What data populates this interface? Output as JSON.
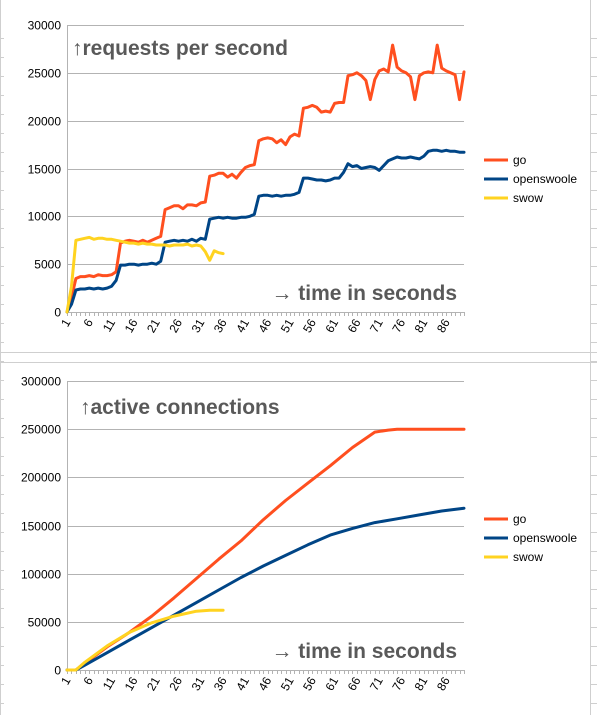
{
  "colors": {
    "go": "#ff4f1f",
    "openswoole": "#004586",
    "swow": "#ffd320",
    "gridline": "#b3b3b3",
    "axis": "#b3b3b3",
    "label_text": "#595959"
  },
  "chart_data": [
    {
      "type": "line",
      "title": "↑requests per second",
      "annotation": "→ time in seconds",
      "ylim": [
        0,
        30000
      ],
      "yticks": [
        0,
        5000,
        10000,
        15000,
        20000,
        25000,
        30000
      ],
      "xlim": [
        1,
        90
      ],
      "xticks": [
        "1",
        "6",
        "11",
        "16",
        "21",
        "26",
        "31",
        "36",
        "41",
        "46",
        "51",
        "56",
        "61",
        "66",
        "71",
        "76",
        "81",
        "86"
      ],
      "grid": true,
      "legend_position": "right",
      "series": [
        {
          "name": "go",
          "x": [
            1,
            2,
            3,
            4,
            5,
            6,
            7,
            8,
            9,
            10,
            11,
            12,
            13,
            14,
            15,
            16,
            17,
            18,
            19,
            20,
            21,
            22,
            23,
            24,
            25,
            26,
            27,
            28,
            29,
            30,
            31,
            32,
            33,
            34,
            35,
            36,
            37,
            38,
            39,
            40,
            41,
            42,
            43,
            44,
            45,
            46,
            47,
            48,
            49,
            50,
            51,
            52,
            53,
            54,
            55,
            56,
            57,
            58,
            59,
            60,
            61,
            62,
            63,
            64,
            65,
            66,
            67,
            68,
            69,
            70,
            71,
            72,
            73,
            74,
            75,
            76,
            77,
            78,
            79,
            80,
            81,
            82,
            83,
            84,
            85,
            86,
            87,
            88,
            89,
            90
          ],
          "values": [
            0,
            1500,
            3500,
            3700,
            3700,
            3800,
            3700,
            3900,
            3800,
            3800,
            3900,
            4200,
            7200,
            7400,
            7500,
            7400,
            7300,
            7500,
            7300,
            7500,
            7700,
            7900,
            10700,
            10900,
            11100,
            11100,
            10800,
            11200,
            11200,
            11100,
            11400,
            11500,
            14200,
            14300,
            14500,
            14500,
            14100,
            14400,
            14000,
            14600,
            15100,
            15300,
            15400,
            17900,
            18100,
            18200,
            18100,
            17700,
            18000,
            17500,
            18300,
            18600,
            18400,
            21300,
            21400,
            21600,
            21400,
            20900,
            21000,
            20900,
            21800,
            21900,
            21900,
            24700,
            24800,
            25000,
            24700,
            24200,
            22200,
            24300,
            25200,
            25400,
            25100,
            27900,
            25600,
            25200,
            25000,
            24600,
            22200,
            24700,
            25000,
            25100,
            25000,
            27900,
            25500,
            25200,
            25000,
            24800,
            22200,
            25100
          ]
        },
        {
          "name": "openswoole",
          "x": [
            1,
            2,
            3,
            4,
            5,
            6,
            7,
            8,
            9,
            10,
            11,
            12,
            13,
            14,
            15,
            16,
            17,
            18,
            19,
            20,
            21,
            22,
            23,
            24,
            25,
            26,
            27,
            28,
            29,
            30,
            31,
            32,
            33,
            34,
            35,
            36,
            37,
            38,
            39,
            40,
            41,
            42,
            43,
            44,
            45,
            46,
            47,
            48,
            49,
            50,
            51,
            52,
            53,
            54,
            55,
            56,
            57,
            58,
            59,
            60,
            61,
            62,
            63,
            64,
            65,
            66,
            67,
            68,
            69,
            70,
            71,
            72,
            73,
            74,
            75,
            76,
            77,
            78,
            79,
            80,
            81,
            82,
            83,
            84,
            85,
            86,
            87,
            88,
            89,
            90
          ],
          "values": [
            0,
            800,
            2300,
            2400,
            2400,
            2500,
            2400,
            2500,
            2400,
            2500,
            2700,
            3300,
            4900,
            4900,
            5000,
            5000,
            4900,
            5000,
            5000,
            5100,
            5000,
            5300,
            7300,
            7400,
            7500,
            7400,
            7500,
            7400,
            7600,
            7400,
            7700,
            7600,
            9700,
            9800,
            9900,
            9800,
            9900,
            9800,
            9800,
            9900,
            9900,
            10000,
            10200,
            12100,
            12200,
            12200,
            12100,
            12200,
            12100,
            12200,
            12200,
            12300,
            12500,
            14000,
            14000,
            13900,
            13800,
            13800,
            13700,
            13800,
            14000,
            14000,
            14600,
            15500,
            15200,
            15300,
            15000,
            15100,
            15200,
            15100,
            14800,
            15300,
            15800,
            16000,
            16200,
            16100,
            16100,
            16200,
            16100,
            16000,
            16300,
            16800,
            16900,
            16900,
            16800,
            16900,
            16800,
            16800,
            16700,
            16700
          ]
        },
        {
          "name": "swow",
          "x": [
            1,
            2,
            3,
            4,
            5,
            6,
            7,
            8,
            9,
            10,
            11,
            12,
            13,
            14,
            15,
            16,
            17,
            18,
            19,
            20,
            21,
            22,
            23,
            24,
            25,
            26,
            27,
            28,
            29,
            30,
            31,
            32,
            33,
            34,
            35,
            36
          ],
          "values": [
            0,
            2700,
            7500,
            7600,
            7700,
            7800,
            7600,
            7700,
            7700,
            7600,
            7600,
            7500,
            7400,
            7300,
            7200,
            7200,
            7100,
            7200,
            7100,
            7100,
            7000,
            7000,
            7000,
            6900,
            7000,
            7000,
            7000,
            7100,
            6900,
            7000,
            6900,
            6300,
            5400,
            6400,
            6200,
            6100
          ]
        }
      ]
    },
    {
      "type": "line",
      "title": "↑active connections",
      "annotation": "→ time in seconds",
      "ylim": [
        0,
        300000
      ],
      "yticks": [
        0,
        50000,
        100000,
        150000,
        200000,
        250000,
        300000
      ],
      "xlim": [
        1,
        90
      ],
      "xticks": [
        "1",
        "6",
        "11",
        "16",
        "21",
        "26",
        "31",
        "36",
        "41",
        "46",
        "51",
        "56",
        "61",
        "66",
        "71",
        "76",
        "81",
        "86"
      ],
      "grid": true,
      "legend_position": "right",
      "series": [
        {
          "name": "go",
          "x": [
            1,
            3,
            5,
            10,
            15,
            20,
            25,
            30,
            35,
            40,
            45,
            50,
            55,
            60,
            65,
            70,
            73,
            75,
            80,
            85,
            90
          ],
          "values": [
            0,
            0,
            7000,
            24000,
            39000,
            56000,
            75000,
            95000,
            115000,
            134000,
            156000,
            176000,
            194000,
            212000,
            231000,
            247000,
            249000,
            250000,
            250000,
            250000,
            250000
          ]
        },
        {
          "name": "openswoole",
          "x": [
            1,
            3,
            5,
            10,
            15,
            20,
            25,
            30,
            35,
            40,
            45,
            50,
            55,
            60,
            65,
            70,
            75,
            80,
            85,
            90
          ],
          "values": [
            0,
            0,
            5000,
            18000,
            31000,
            44000,
            57000,
            70000,
            83000,
            96000,
            108000,
            119000,
            130000,
            140000,
            147000,
            153000,
            157000,
            161000,
            165000,
            168000
          ]
        },
        {
          "name": "swow",
          "x": [
            1,
            3,
            5,
            10,
            15,
            20,
            25,
            30,
            33,
            36
          ],
          "values": [
            0,
            0,
            8000,
            25000,
            39000,
            49000,
            56000,
            61000,
            62000,
            62000
          ]
        }
      ]
    }
  ]
}
